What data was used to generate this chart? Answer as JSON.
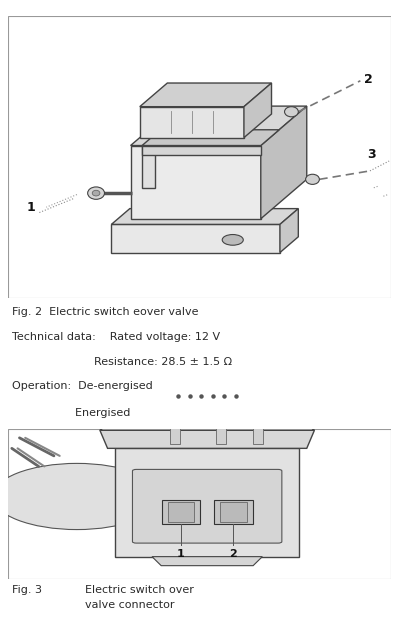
{
  "fig_width": 3.99,
  "fig_height": 6.4,
  "dpi": 100,
  "bg_color": "#ffffff",
  "box_bg": "#ffffff",
  "border_color": "#999999",
  "text_color": "#2a2a2a",
  "gray_draw": "#555555",
  "light_gray": "#cccccc",
  "mid_gray": "#aaaaaa",
  "fig2_line1": "Fig. 2  Electric switch eover valve",
  "fig2_line2": "Technical data:    Rated voltage: 12 V",
  "fig2_line3": "                         Resistance: 28.5 ± 1.5 Ω",
  "fig2_line4": "Operation:  De-energised",
  "fig2_line5": "                  Energised",
  "fig3_num": "Fig. 3",
  "fig3_text": "Electric switch over\nvalve connector"
}
